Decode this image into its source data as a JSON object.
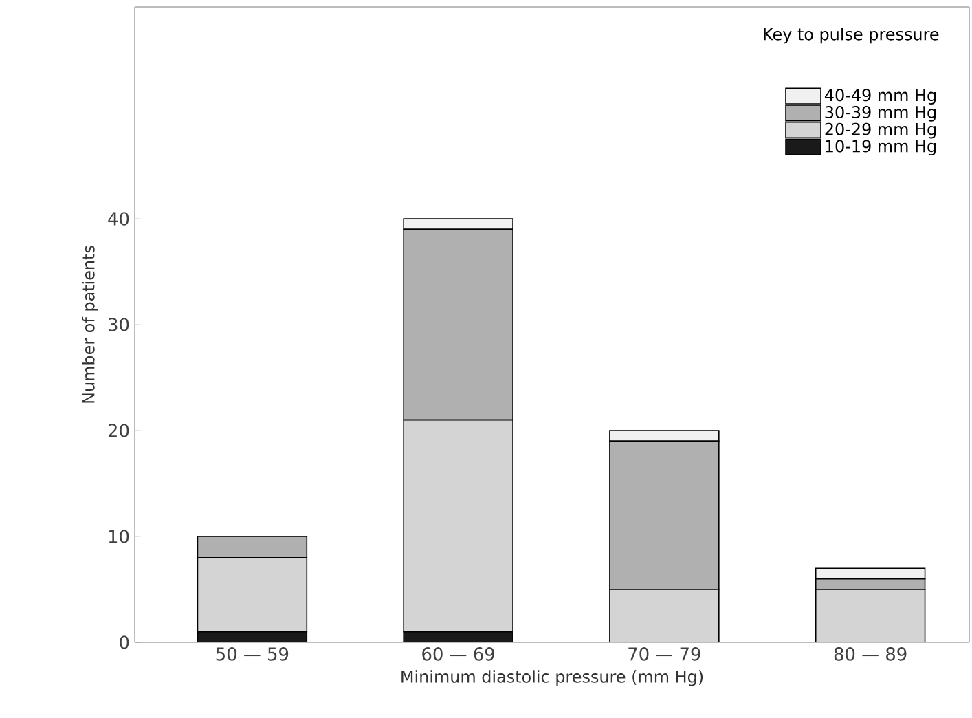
{
  "chart_data": {
    "type": "bar",
    "stacked": true,
    "xlabel": "Minimum diastolic pressure (mm Hg)",
    "ylabel": "Number of patients",
    "legend_title": "Key to pulse pressure",
    "legend": "top right",
    "categories": [
      "50 — 59",
      "60 — 69",
      "70 — 79",
      "80 — 89"
    ],
    "series": [
      {
        "name": "10-19 mm Hg",
        "color": "#1a1a1a",
        "values": [
          1,
          1,
          0,
          0
        ]
      },
      {
        "name": "20-29 mm Hg",
        "color": "#d4d4d4",
        "values": [
          7,
          20,
          5,
          5
        ]
      },
      {
        "name": "30-39 mm Hg",
        "color": "#b0b0b0",
        "values": [
          2,
          18,
          14,
          1
        ]
      },
      {
        "name": "40-49 mm Hg",
        "color": "#f0f0f0",
        "values": [
          0,
          1,
          1,
          1
        ]
      }
    ],
    "ylim": [
      0,
      60
    ],
    "yticks": [
      0,
      10,
      20,
      30,
      40
    ],
    "grid": false
  }
}
